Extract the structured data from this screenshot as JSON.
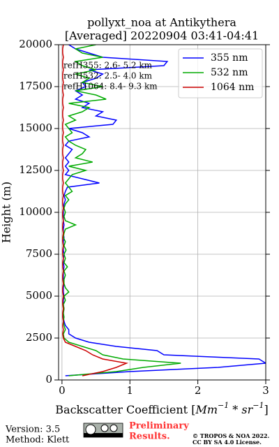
{
  "chart_data": {
    "type": "profile",
    "title": [
      "pollyxt_noa at Antikythera",
      "[Averaged] 20220904 03:41-04:41"
    ],
    "xlabel_parts": [
      "Backscatter Coefficient [",
      "Mm",
      "−1",
      " * ",
      "sr",
      "−1",
      "]"
    ],
    "ylabel": "Height (m)",
    "xlim": [
      -0.05,
      3
    ],
    "xticks": [
      0,
      1,
      2,
      3
    ],
    "ylim": [
      0,
      20000
    ],
    "yticks": [
      0,
      2500,
      5000,
      7500,
      10000,
      12500,
      15000,
      17500,
      20000
    ],
    "grid": true,
    "legend": "upper right",
    "heights": [
      0,
      250,
      500,
      750,
      1000,
      1250,
      1500,
      1750,
      2000,
      2250,
      2500,
      2750,
      3000,
      3250,
      3500,
      3750,
      4000,
      4250,
      4500,
      4750,
      5000,
      5250,
      5500,
      5750,
      6000,
      6250,
      6500,
      6750,
      7000,
      7250,
      7500,
      7750,
      8000,
      8250,
      8500,
      8750,
      9000,
      9250,
      9500,
      9750,
      10000,
      10250,
      10500,
      10750,
      11000,
      11250,
      11500,
      11750,
      12000,
      12250,
      12500,
      12750,
      13000,
      13250,
      13500,
      13750,
      14000,
      14250,
      14500,
      14750,
      15000,
      15250,
      15500,
      15750,
      16000,
      16250,
      16500,
      16750,
      17000,
      17250,
      17500,
      17750,
      18000,
      18250,
      18500,
      18750,
      19000,
      19250,
      19500,
      19750,
      20000
    ],
    "series": [
      {
        "name": "355 nm",
        "color": "#0000ff",
        "values": [
          null,
          0.05,
          1.0,
          2.3,
          3.0,
          2.9,
          1.5,
          1.4,
          0.8,
          0.4,
          0.2,
          0.1,
          0.1,
          0.05,
          0.03,
          0.02,
          0.02,
          0.03,
          0.02,
          0.02,
          0.03,
          0.02,
          0.02,
          0.03,
          0.02,
          0.02,
          0.02,
          0.03,
          0.02,
          0.02,
          0.03,
          0.02,
          0.02,
          0.02,
          0.03,
          0.02,
          0.02,
          0.03,
          0.02,
          0.02,
          0.02,
          0.02,
          0.03,
          0.05,
          0.03,
          0.05,
          0.08,
          0.55,
          0.3,
          0.05,
          0.1,
          0.05,
          0.1,
          0.05,
          0.1,
          0.15,
          0.05,
          0.1,
          0.4,
          0.3,
          0.1,
          0.75,
          0.8,
          0.5,
          0.6,
          0.3,
          0.4,
          0.2,
          0.3,
          0.2,
          0.35,
          0.3,
          0.5,
          0.6,
          0.4,
          1.5,
          1.55,
          0.6,
          0.4,
          0.2,
          0.1
        ]
      },
      {
        "name": "532 nm",
        "color": "#00aa00",
        "values": [
          null,
          0.1,
          0.8,
          1.2,
          1.75,
          0.9,
          0.6,
          0.5,
          0.3,
          0.1,
          0.03,
          0.02,
          0.05,
          0.03,
          0.02,
          0.03,
          0.02,
          0.03,
          0.02,
          0.05,
          0.03,
          0.1,
          0.05,
          0.03,
          0.03,
          0.05,
          0.03,
          0.08,
          0.03,
          0.05,
          0.03,
          0.06,
          0.03,
          0.05,
          0.02,
          0.03,
          0.05,
          0.2,
          0.05,
          0.03,
          0.05,
          0.03,
          0.05,
          0.1,
          0.05,
          0.15,
          0.1,
          0.05,
          0.1,
          0.15,
          0.35,
          0.1,
          0.45,
          0.2,
          0.3,
          0.35,
          0.2,
          0.1,
          0.05,
          0.15,
          0.1,
          0.05,
          0.2,
          0.1,
          0.3,
          0.4,
          0.1,
          0.65,
          0.5,
          0.2,
          0.6,
          0.3,
          0.4,
          0.2,
          0.5,
          0.3,
          0.2,
          0.6,
          0.3,
          0.2,
          0.5
        ]
      },
      {
        "name": "1064 nm",
        "color": "#cc0000",
        "values": [
          null,
          0.3,
          0.6,
          0.8,
          0.95,
          0.6,
          0.45,
          0.35,
          0.2,
          0.05,
          0.02,
          0.01,
          0.02,
          0.01,
          0.02,
          0.01,
          0.01,
          0.02,
          0.01,
          0.01,
          0.02,
          0.01,
          0.01,
          0.02,
          0.01,
          0.01,
          0.02,
          0.01,
          0.01,
          0.02,
          0.01,
          0.01,
          0.02,
          0.01,
          0.01,
          0.02,
          0.01,
          0.01,
          0.02,
          0.01,
          0.01,
          0.02,
          0.01,
          0.01,
          0.02,
          0.01,
          0.01,
          0.02,
          0.01,
          0.01,
          0.02,
          0.01,
          0.01,
          0.02,
          0.01,
          0.01,
          0.02,
          0.01,
          0.01,
          0.02,
          0.01,
          0.01,
          0.02,
          0.01,
          0.01,
          0.02,
          0.01,
          0.01,
          0.02,
          0.01,
          0.01,
          0.02,
          0.01,
          0.01,
          0.02,
          0.01,
          0.01,
          0.02,
          0.01,
          0.01,
          0.02
        ]
      }
    ],
    "annotations": [
      "refH355:  2.6- 5.2 km",
      "refH532:  2.5- 4.0 km",
      "refH1064:  8.4- 9.3 km"
    ]
  },
  "footer": {
    "version": "Version: 3.5",
    "method": "Method: Klett",
    "status": [
      "Preliminary",
      "Results."
    ],
    "copyright": [
      "© TROPOS & NOA 2022.",
      "CC BY SA 4.0 License."
    ]
  }
}
